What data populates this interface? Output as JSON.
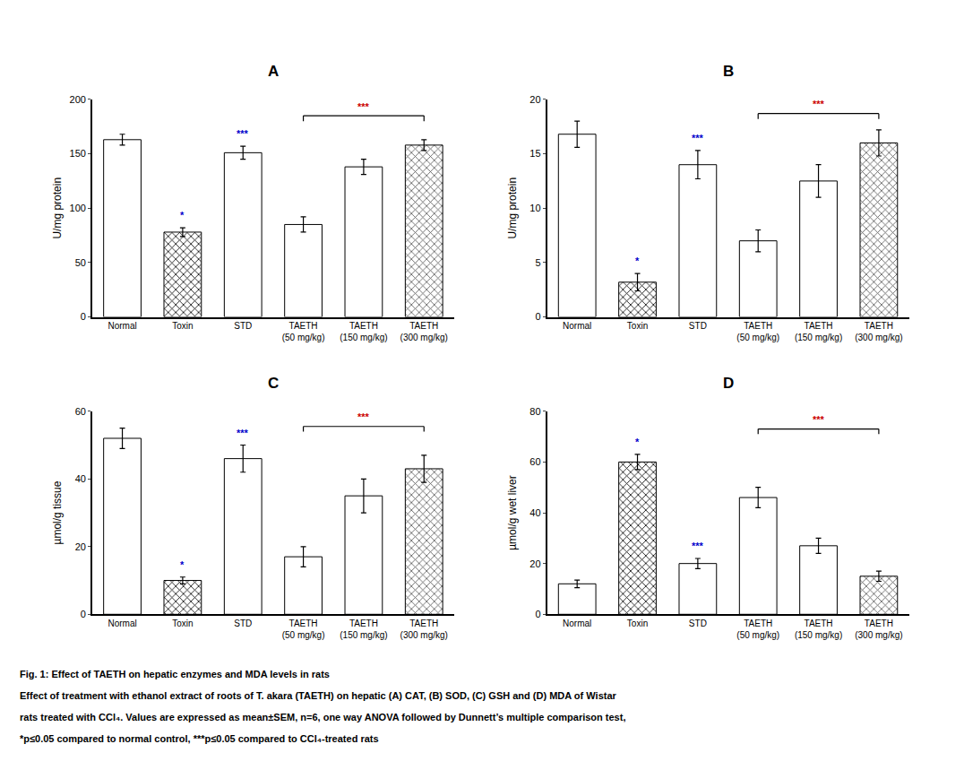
{
  "chart_data": [
    {
      "type": "bar",
      "title": "A",
      "ylabel": "U/mg protein",
      "categories": [
        "Normal",
        "Toxin",
        "STD",
        "TAETH\n(50 mg/kg)",
        "TAETH\n(150 mg/kg)",
        "TAETH\n(300 mg/kg)"
      ],
      "values": [
        163,
        78,
        151,
        85,
        138,
        158
      ],
      "errors": [
        5,
        4,
        6,
        7,
        7,
        5
      ],
      "colors": [
        "white",
        "black",
        "white",
        "white",
        "white",
        "#555555"
      ],
      "ylim": [
        0,
        200
      ],
      "yticks": [
        0,
        50,
        100,
        150,
        200
      ],
      "grid": false,
      "annotations": [
        {
          "text": "*",
          "x": 1,
          "color": "#0000cc"
        },
        {
          "text": "***",
          "x": 2,
          "color": "#0000cc"
        },
        {
          "text": "***",
          "x": [
            3,
            5
          ],
          "y": 180,
          "color": "#cc0000"
        }
      ]
    },
    {
      "type": "bar",
      "title": "B",
      "ylabel": "U/mg protein",
      "categories": [
        "Normal",
        "Toxin",
        "STD",
        "TAETH\n(50 mg/kg)",
        "TAETH\n(150 mg/kg)",
        "TAETH\n(300 mg/kg)"
      ],
      "values": [
        16.8,
        3.2,
        14.0,
        7.0,
        12.5,
        16.0
      ],
      "errors": [
        1.2,
        0.8,
        1.3,
        1.0,
        1.5,
        1.2
      ],
      "colors": [
        "white",
        "black",
        "white",
        "white",
        "white",
        "#555555"
      ],
      "ylim": [
        0,
        20
      ],
      "yticks": [
        0,
        5,
        10,
        15,
        20
      ],
      "grid": false,
      "annotations": [
        {
          "text": "*",
          "x": 1,
          "color": "#0000cc"
        },
        {
          "text": "***",
          "x": 2,
          "color": "#0000cc"
        },
        {
          "text": "***",
          "x": [
            3,
            5
          ],
          "y": 18.2,
          "color": "#cc0000"
        }
      ]
    },
    {
      "type": "bar",
      "title": "C",
      "ylabel": "µmol/g tissue",
      "categories": [
        "Normal",
        "Toxin",
        "STD",
        "TAETH\n(50 mg/kg)",
        "TAETH\n(150 mg/kg)",
        "TAETH\n(300 mg/kg)"
      ],
      "values": [
        52,
        10,
        46,
        17,
        35,
        43
      ],
      "errors": [
        3,
        1,
        4,
        3,
        5,
        4
      ],
      "colors": [
        "white",
        "black",
        "white",
        "white",
        "white",
        "#555555"
      ],
      "ylim": [
        0,
        60
      ],
      "yticks": [
        0,
        20,
        40,
        60
      ],
      "grid": false,
      "annotations": [
        {
          "text": "*",
          "x": 1,
          "color": "#0000cc"
        },
        {
          "text": "***",
          "x": 2,
          "color": "#0000cc"
        },
        {
          "text": "***",
          "x": [
            3,
            5
          ],
          "y": 54,
          "color": "#cc0000"
        }
      ]
    },
    {
      "type": "bar",
      "title": "D",
      "ylabel": "µmol/g wet liver",
      "categories": [
        "Normal",
        "Toxin",
        "STD",
        "TAETH\n(50 mg/kg)",
        "TAETH\n(150 mg/kg)",
        "TAETH\n(300 mg/kg)"
      ],
      "values": [
        12,
        60,
        20,
        46,
        27,
        15
      ],
      "errors": [
        1.5,
        3,
        2,
        4,
        3,
        2
      ],
      "colors": [
        "white",
        "black",
        "white",
        "white",
        "white",
        "#555555"
      ],
      "ylim": [
        0,
        80
      ],
      "yticks": [
        0,
        20,
        40,
        60,
        80
      ],
      "grid": false,
      "annotations": [
        {
          "text": "*",
          "x": 1,
          "color": "#0000cc"
        },
        {
          "text": "***",
          "x": 2,
          "color": "#0000cc"
        },
        {
          "text": "***",
          "x": [
            3,
            5
          ],
          "y": 71,
          "color": "#cc0000"
        }
      ]
    }
  ],
  "caption": [
    "Fig. 1: Effect of TAETH on hepatic enzymes and MDA levels in rats",
    "Effect of treatment with ethanol extract of roots of T. akara (TAETH) on hepatic (A) CAT, (B) SOD, (C) GSH and (D) MDA of Wistar",
    "rats treated with CCl₄. Values are expressed as mean±SEM, n=6, one way ANOVA followed by Dunnett’s multiple comparison test,",
    "*p≤0.05 compared to normal control, ***p≤0.05 compared to CCl₄-treated rats"
  ]
}
